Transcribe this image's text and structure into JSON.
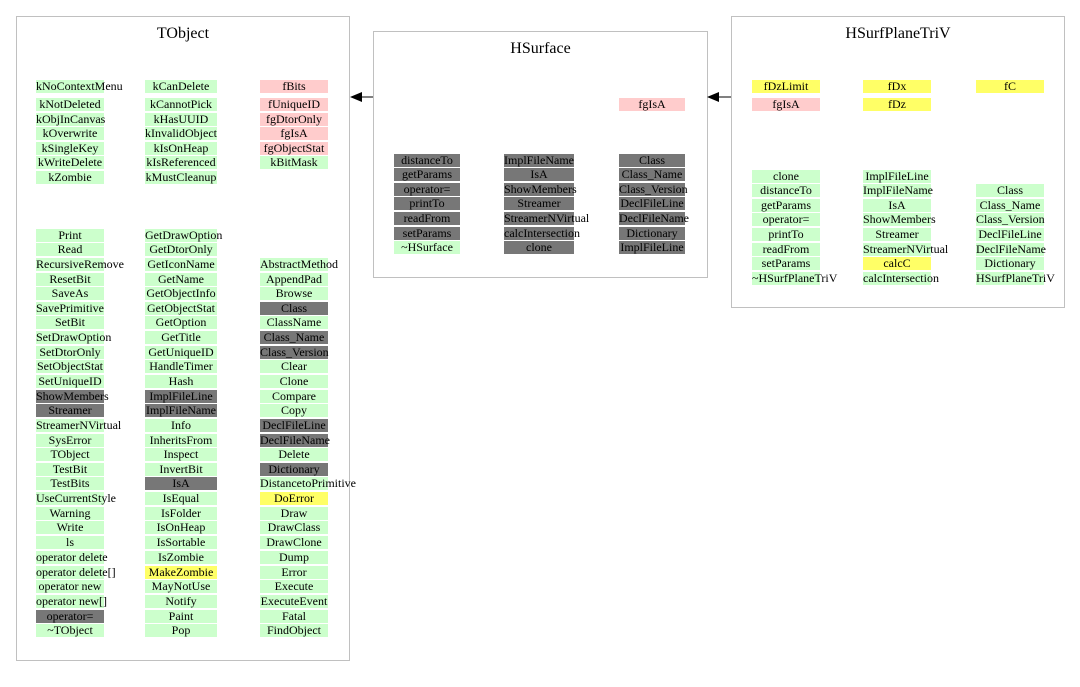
{
  "colors": {
    "green": "#ccffcc",
    "gray": "#777777",
    "pink": "#ffcccc",
    "yellow": "#ffff66",
    "border": "#c0c0c0"
  },
  "boxes": [
    {
      "title": "TObject",
      "columns": [
        [
          {
            "text": "kNoContextMenu",
            "color": "green"
          },
          {
            "text": "kNotDeleted",
            "color": "green"
          },
          {
            "text": "kObjInCanvas",
            "color": "green"
          },
          {
            "text": "kOverwrite",
            "color": "green"
          },
          {
            "text": "kSingleKey",
            "color": "green"
          },
          {
            "text": "kWriteDelete",
            "color": "green"
          },
          {
            "text": "kZombie",
            "color": "green"
          },
          {
            "text": "Print",
            "color": "green"
          },
          {
            "text": "Read",
            "color": "green"
          },
          {
            "text": "RecursiveRemove",
            "color": "green"
          },
          {
            "text": "ResetBit",
            "color": "green"
          },
          {
            "text": "SaveAs",
            "color": "green"
          },
          {
            "text": "SavePrimitive",
            "color": "green"
          },
          {
            "text": "SetBit",
            "color": "green"
          },
          {
            "text": "SetDrawOption",
            "color": "green"
          },
          {
            "text": "SetDtorOnly",
            "color": "green"
          },
          {
            "text": "SetObjectStat",
            "color": "green"
          },
          {
            "text": "SetUniqueID",
            "color": "green"
          },
          {
            "text": "ShowMembers",
            "color": "gray"
          },
          {
            "text": "Streamer",
            "color": "gray"
          },
          {
            "text": "StreamerNVirtual",
            "color": "green"
          },
          {
            "text": "SysError",
            "color": "green"
          },
          {
            "text": "TObject",
            "color": "green"
          },
          {
            "text": "TestBit",
            "color": "green"
          },
          {
            "text": "TestBits",
            "color": "green"
          },
          {
            "text": "UseCurrentStyle",
            "color": "green"
          },
          {
            "text": "Warning",
            "color": "green"
          },
          {
            "text": "Write",
            "color": "green"
          },
          {
            "text": "ls",
            "color": "green"
          },
          {
            "text": "operator delete",
            "color": "green"
          },
          {
            "text": "operator delete[]",
            "color": "green"
          },
          {
            "text": "operator new",
            "color": "green"
          },
          {
            "text": "operator new[]",
            "color": "green"
          },
          {
            "text": "operator=",
            "color": "gray"
          },
          {
            "text": "~TObject",
            "color": "green"
          }
        ],
        [
          {
            "text": "kCanDelete",
            "color": "green"
          },
          {
            "text": "kCannotPick",
            "color": "green"
          },
          {
            "text": "kHasUUID",
            "color": "green"
          },
          {
            "text": "kInvalidObject",
            "color": "green"
          },
          {
            "text": "kIsOnHeap",
            "color": "green"
          },
          {
            "text": "kIsReferenced",
            "color": "green"
          },
          {
            "text": "kMustCleanup",
            "color": "green"
          },
          {
            "text": "GetDrawOption",
            "color": "green"
          },
          {
            "text": "GetDtorOnly",
            "color": "green"
          },
          {
            "text": "GetIconName",
            "color": "green"
          },
          {
            "text": "GetName",
            "color": "green"
          },
          {
            "text": "GetObjectInfo",
            "color": "green"
          },
          {
            "text": "GetObjectStat",
            "color": "green"
          },
          {
            "text": "GetOption",
            "color": "green"
          },
          {
            "text": "GetTitle",
            "color": "green"
          },
          {
            "text": "GetUniqueID",
            "color": "green"
          },
          {
            "text": "HandleTimer",
            "color": "green"
          },
          {
            "text": "Hash",
            "color": "green"
          },
          {
            "text": "ImplFileLine",
            "color": "gray"
          },
          {
            "text": "ImplFileName",
            "color": "gray"
          },
          {
            "text": "Info",
            "color": "green"
          },
          {
            "text": "InheritsFrom",
            "color": "green"
          },
          {
            "text": "Inspect",
            "color": "green"
          },
          {
            "text": "InvertBit",
            "color": "green"
          },
          {
            "text": "IsA",
            "color": "gray"
          },
          {
            "text": "IsEqual",
            "color": "green"
          },
          {
            "text": "IsFolder",
            "color": "green"
          },
          {
            "text": "IsOnHeap",
            "color": "green"
          },
          {
            "text": "IsSortable",
            "color": "green"
          },
          {
            "text": "IsZombie",
            "color": "green"
          },
          {
            "text": "MakeZombie",
            "color": "yellow"
          },
          {
            "text": "MayNotUse",
            "color": "green"
          },
          {
            "text": "Notify",
            "color": "green"
          },
          {
            "text": "Paint",
            "color": "green"
          },
          {
            "text": "Pop",
            "color": "green"
          }
        ],
        [
          {
            "text": "fBits",
            "color": "pink"
          },
          {
            "text": "fUniqueID",
            "color": "pink"
          },
          {
            "text": "fgDtorOnly",
            "color": "pink"
          },
          {
            "text": "fgIsA",
            "color": "pink"
          },
          {
            "text": "fgObjectStat",
            "color": "pink"
          },
          {
            "text": "kBitMask",
            "color": "green"
          },
          {
            "text": "AbstractMethod",
            "color": "green"
          },
          {
            "text": "AppendPad",
            "color": "green"
          },
          {
            "text": "Browse",
            "color": "green"
          },
          {
            "text": "Class",
            "color": "gray"
          },
          {
            "text": "ClassName",
            "color": "green"
          },
          {
            "text": "Class_Name",
            "color": "gray"
          },
          {
            "text": "Class_Version",
            "color": "gray"
          },
          {
            "text": "Clear",
            "color": "green"
          },
          {
            "text": "Clone",
            "color": "green"
          },
          {
            "text": "Compare",
            "color": "green"
          },
          {
            "text": "Copy",
            "color": "green"
          },
          {
            "text": "DeclFileLine",
            "color": "gray"
          },
          {
            "text": "DeclFileName",
            "color": "gray"
          },
          {
            "text": "Delete",
            "color": "green"
          },
          {
            "text": "Dictionary",
            "color": "gray"
          },
          {
            "text": "DistancetoPrimitive",
            "color": "green"
          },
          {
            "text": "DoError",
            "color": "yellow"
          },
          {
            "text": "Draw",
            "color": "green"
          },
          {
            "text": "DrawClass",
            "color": "green"
          },
          {
            "text": "DrawClone",
            "color": "green"
          },
          {
            "text": "Dump",
            "color": "green"
          },
          {
            "text": "Error",
            "color": "green"
          },
          {
            "text": "Execute",
            "color": "green"
          },
          {
            "text": "ExecuteEvent",
            "color": "green"
          },
          {
            "text": "Fatal",
            "color": "green"
          },
          {
            "text": "FindObject",
            "color": "green"
          }
        ]
      ]
    },
    {
      "title": "HSurface",
      "columns": [
        [
          {
            "text": "distanceTo",
            "color": "gray"
          },
          {
            "text": "getParams",
            "color": "gray"
          },
          {
            "text": "operator=",
            "color": "gray"
          },
          {
            "text": "printTo",
            "color": "gray"
          },
          {
            "text": "readFrom",
            "color": "gray"
          },
          {
            "text": "setParams",
            "color": "gray"
          },
          {
            "text": "~HSurface",
            "color": "green"
          }
        ],
        [
          {
            "text": "ImplFileName",
            "color": "gray"
          },
          {
            "text": "IsA",
            "color": "gray"
          },
          {
            "text": "ShowMembers",
            "color": "gray"
          },
          {
            "text": "Streamer",
            "color": "gray"
          },
          {
            "text": "StreamerNVirtual",
            "color": "gray"
          },
          {
            "text": "calcIntersection",
            "color": "gray"
          },
          {
            "text": "clone",
            "color": "gray"
          }
        ],
        [
          {
            "text": "fgIsA",
            "color": "pink"
          },
          {
            "text": "Class",
            "color": "gray"
          },
          {
            "text": "Class_Name",
            "color": "gray"
          },
          {
            "text": "Class_Version",
            "color": "gray"
          },
          {
            "text": "DeclFileLine",
            "color": "gray"
          },
          {
            "text": "DeclFileName",
            "color": "gray"
          },
          {
            "text": "Dictionary",
            "color": "gray"
          },
          {
            "text": "ImplFileLine",
            "color": "gray"
          }
        ]
      ]
    },
    {
      "title": "HSurfPlaneTriV",
      "columns": [
        [
          {
            "text": "fDzLimit",
            "color": "yellow"
          },
          {
            "text": "fgIsA",
            "color": "pink"
          },
          {
            "text": "clone",
            "color": "green"
          },
          {
            "text": "distanceTo",
            "color": "green"
          },
          {
            "text": "getParams",
            "color": "green"
          },
          {
            "text": "operator=",
            "color": "green"
          },
          {
            "text": "printTo",
            "color": "green"
          },
          {
            "text": "readFrom",
            "color": "green"
          },
          {
            "text": "setParams",
            "color": "green"
          },
          {
            "text": "~HSurfPlaneTriV",
            "color": "green"
          }
        ],
        [
          {
            "text": "fDx",
            "color": "yellow"
          },
          {
            "text": "fDz",
            "color": "yellow"
          },
          {
            "text": "ImplFileLine",
            "color": "green"
          },
          {
            "text": "ImplFileName",
            "color": "green"
          },
          {
            "text": "IsA",
            "color": "green"
          },
          {
            "text": "ShowMembers",
            "color": "green"
          },
          {
            "text": "Streamer",
            "color": "green"
          },
          {
            "text": "StreamerNVirtual",
            "color": "green"
          },
          {
            "text": "calcC",
            "color": "yellow"
          },
          {
            "text": "calcIntersection",
            "color": "green"
          }
        ],
        [
          {
            "text": "fC",
            "color": "yellow"
          },
          {
            "text": "Class",
            "color": "green"
          },
          {
            "text": "Class_Name",
            "color": "green"
          },
          {
            "text": "Class_Version",
            "color": "green"
          },
          {
            "text": "DeclFileLine",
            "color": "green"
          },
          {
            "text": "DeclFileName",
            "color": "green"
          },
          {
            "text": "Dictionary",
            "color": "green"
          },
          {
            "text": "HSurfPlaneTriV",
            "color": "green"
          }
        ]
      ]
    }
  ]
}
